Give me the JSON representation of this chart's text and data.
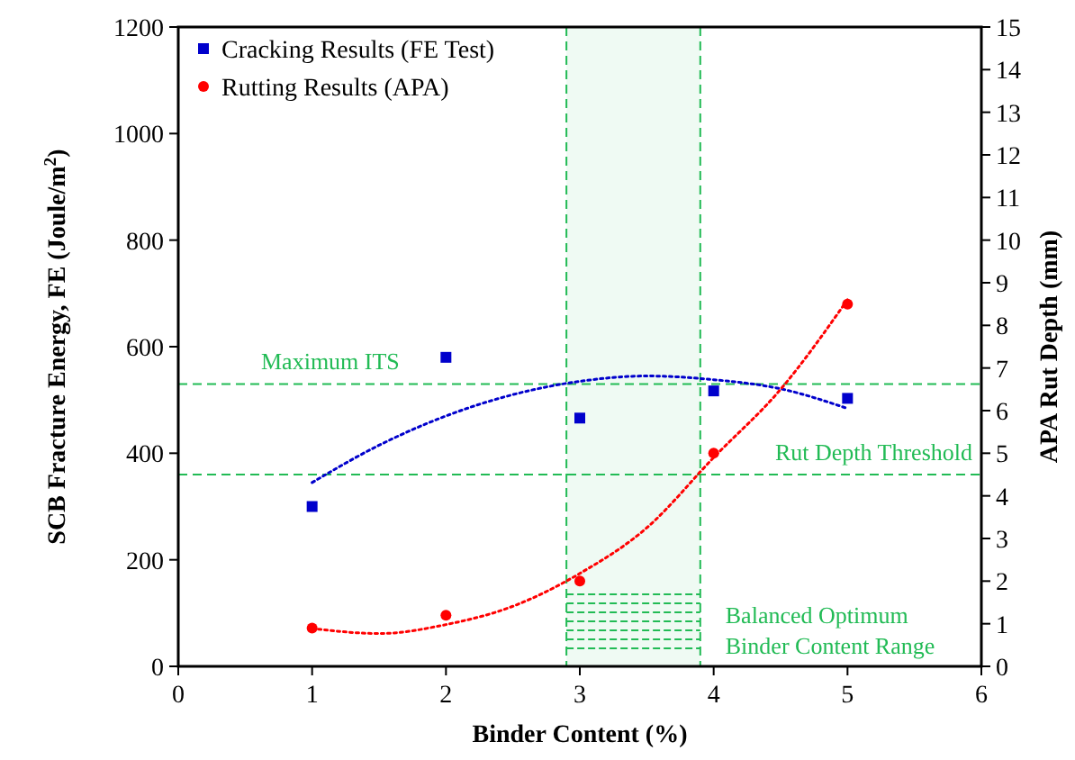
{
  "chart_data": {
    "type": "scatter",
    "xlabel": "Binder Content (%)",
    "ylabel": "SCB Fracture Energy, FE (Joule/m$^{2}$)",
    "y2label": "APA Rut Depth (mm)",
    "x": [
      1,
      2,
      3,
      4,
      5
    ],
    "xlim": [
      0,
      6
    ],
    "xticks": [
      0,
      1,
      2,
      3,
      4,
      5,
      6
    ],
    "ylim": [
      0,
      1200
    ],
    "yticks": [
      0,
      200,
      400,
      600,
      800,
      1000,
      1200
    ],
    "y2lim": [
      0,
      15
    ],
    "y2ticks": [
      0,
      1,
      2,
      3,
      4,
      5,
      6,
      7,
      8,
      9,
      10,
      11,
      12,
      13,
      14,
      15
    ],
    "grid": false,
    "legend": "top left",
    "series": [
      {
        "name": "Cracking Results (FE Test)",
        "color": "#0000cc",
        "marker": "square",
        "values": [
          300,
          580,
          466,
          517,
          503
        ]
      },
      {
        "name": "Rutting Results (APA)",
        "color": "#ff0000",
        "marker": "circle",
        "axis": "y2",
        "values": [
          0.9,
          1.2,
          2.0,
          5.0,
          8.5
        ]
      },
      {
        "type": "line",
        "color": "#0000cc",
        "line_style": "dotted",
        "x": [
          1,
          1.5,
          2,
          2.5,
          3,
          3.5,
          4,
          4.5,
          5
        ],
        "values": [
          345,
          415,
          470,
          510,
          535,
          545,
          538,
          521,
          484
        ]
      },
      {
        "type": "line",
        "color": "#ff0000",
        "line_style": "dotted",
        "axis": "y2",
        "x": [
          1,
          1.5,
          2,
          2.5,
          3,
          3.5,
          4,
          4.5,
          5
        ],
        "values": [
          0.89,
          0.77,
          0.98,
          1.41,
          2.18,
          3.25,
          4.9,
          6.5,
          8.6
        ]
      }
    ],
    "ref_lines": [
      {
        "axis": "y",
        "value": 530,
        "label": "Maximum ITS",
        "color": "#22bb55",
        "line_style": "dashed"
      },
      {
        "axis": "y2",
        "value": 4.5,
        "label": "Rut Depth Threshold",
        "color": "#22bb55",
        "line_style": "dashed"
      },
      {
        "axis": "x",
        "value": 2.9,
        "color": "#22bb55",
        "line_style": "dashed"
      },
      {
        "axis": "x",
        "value": 3.9,
        "color": "#22bb55",
        "line_style": "dashed"
      }
    ],
    "bands": [
      {
        "axis": "x",
        "from": 2.9,
        "to": 3.9,
        "label": "Balanced Optimum Binder Content Range",
        "color": "#22bb55"
      }
    ]
  }
}
